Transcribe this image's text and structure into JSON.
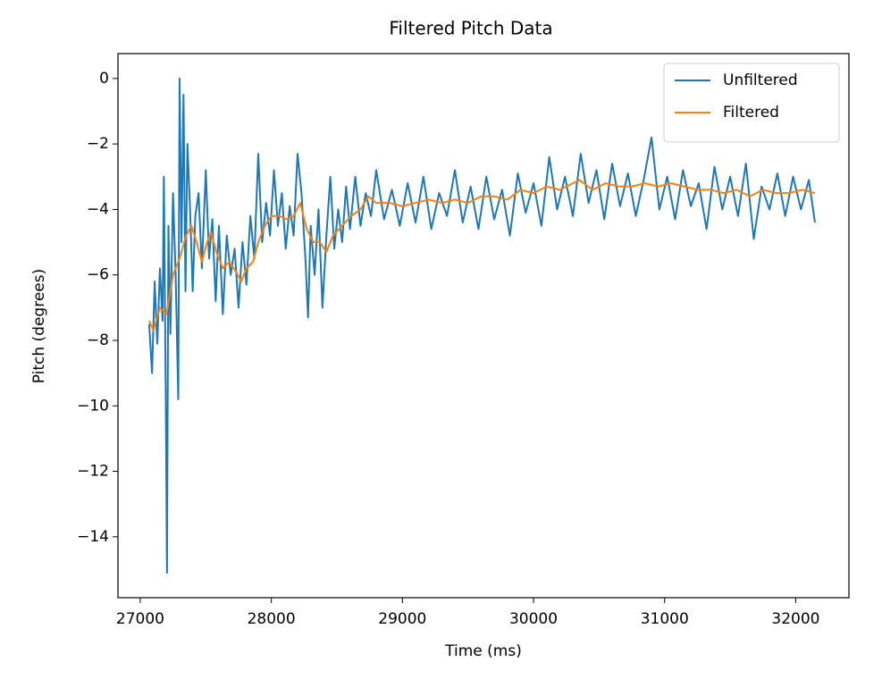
{
  "chart_data": {
    "type": "line",
    "title": "Filtered Pitch Data",
    "xlabel": "Time (ms)",
    "ylabel": "Pitch (degrees)",
    "xlim": [
      26830,
      32406
    ],
    "ylim": [
      -15.86,
      0.76
    ],
    "xticks": [
      27000,
      28000,
      29000,
      30000,
      31000,
      32000
    ],
    "yticks": [
      0,
      {
        "value": -2,
        "label": "−2"
      },
      {
        "value": -4,
        "label": "−4"
      },
      {
        "value": -6,
        "label": "−6"
      },
      {
        "value": -8,
        "label": "−8"
      },
      {
        "value": -10,
        "label": "−10"
      },
      {
        "value": -12,
        "label": "−12"
      },
      {
        "value": -14,
        "label": "−14"
      }
    ],
    "grid": false,
    "legend": "upper right",
    "series": [
      {
        "name": "Unfiltered",
        "color": "#1f77b4",
        "x": [
          27068,
          27090,
          27110,
          27130,
          27150,
          27170,
          27180,
          27195,
          27204,
          27215,
          27230,
          27250,
          27270,
          27290,
          27300,
          27315,
          27330,
          27345,
          27360,
          27380,
          27400,
          27420,
          27445,
          27470,
          27500,
          27525,
          27550,
          27575,
          27600,
          27630,
          27660,
          27690,
          27720,
          27750,
          27780,
          27810,
          27840,
          27870,
          27900,
          27930,
          27960,
          27990,
          28020,
          28050,
          28080,
          28110,
          28140,
          28170,
          28200,
          28230,
          28260,
          28280,
          28300,
          28330,
          28360,
          28390,
          28420,
          28450,
          28480,
          28510,
          28540,
          28570,
          28600,
          28640,
          28680,
          28720,
          28760,
          28800,
          28860,
          28920,
          28980,
          29040,
          29100,
          29160,
          29220,
          29280,
          29340,
          29400,
          29460,
          29520,
          29580,
          29640,
          29700,
          29760,
          29820,
          29880,
          29940,
          30000,
          30060,
          30120,
          30180,
          30240,
          30300,
          30360,
          30420,
          30480,
          30540,
          30600,
          30660,
          30720,
          30780,
          30840,
          30900,
          30960,
          31020,
          31080,
          31140,
          31200,
          31260,
          31320,
          31380,
          31440,
          31500,
          31560,
          31620,
          31680,
          31740,
          31800,
          31860,
          31920,
          31980,
          32040,
          32100,
          32147
        ],
        "values": [
          -7.5,
          -9.0,
          -6.2,
          -8.1,
          -5.8,
          -7.4,
          -3.0,
          -9.9,
          -15.1,
          -4.5,
          -7.8,
          -3.5,
          -6.0,
          -9.8,
          0.0,
          -5.0,
          -0.5,
          -6.5,
          -2.0,
          -4.0,
          -6.5,
          -4.2,
          -3.5,
          -5.8,
          -2.8,
          -5.5,
          -4.3,
          -6.8,
          -4.5,
          -7.2,
          -4.8,
          -6.0,
          -5.2,
          -7.0,
          -5.0,
          -6.3,
          -4.2,
          -5.5,
          -2.3,
          -5.0,
          -3.8,
          -4.8,
          -2.8,
          -4.5,
          -3.5,
          -5.2,
          -3.9,
          -4.8,
          -2.3,
          -3.5,
          -5.5,
          -7.3,
          -4.5,
          -6.0,
          -4.0,
          -7.0,
          -4.8,
          -3.0,
          -5.2,
          -4.0,
          -5.0,
          -3.3,
          -4.6,
          -3.0,
          -4.5,
          -3.5,
          -4.2,
          -2.8,
          -4.3,
          -3.4,
          -4.5,
          -3.2,
          -4.4,
          -3.0,
          -4.6,
          -3.5,
          -4.2,
          -2.8,
          -4.4,
          -3.3,
          -4.6,
          -3.0,
          -4.3,
          -3.4,
          -4.8,
          -2.9,
          -4.1,
          -3.2,
          -4.5,
          -2.4,
          -4.0,
          -3.0,
          -4.2,
          -2.3,
          -3.8,
          -2.8,
          -4.3,
          -2.6,
          -3.9,
          -2.9,
          -4.2,
          -3.1,
          -1.8,
          -4.0,
          -3.0,
          -4.3,
          -2.8,
          -3.9,
          -3.2,
          -4.6,
          -2.7,
          -4.0,
          -3.0,
          -4.2,
          -2.6,
          -4.9,
          -3.3,
          -4.0,
          -2.9,
          -4.2,
          -3.0,
          -4.0,
          -3.1,
          -4.4
        ]
      },
      {
        "name": "Filtered",
        "color": "#ff7f0e",
        "x": [
          27068,
          27100,
          27150,
          27200,
          27250,
          27300,
          27350,
          27390,
          27430,
          27470,
          27510,
          27540,
          27580,
          27630,
          27680,
          27730,
          27770,
          27810,
          27860,
          27900,
          27950,
          28000,
          28060,
          28120,
          28170,
          28220,
          28270,
          28320,
          28370,
          28420,
          28470,
          28540,
          28610,
          28680,
          28740,
          28800,
          28900,
          29000,
          29100,
          29200,
          29300,
          29400,
          29500,
          29600,
          29700,
          29800,
          29900,
          30000,
          30100,
          30200,
          30300,
          30350,
          30450,
          30550,
          30650,
          30750,
          30850,
          30950,
          31050,
          31150,
          31250,
          31350,
          31450,
          31550,
          31650,
          31750,
          31850,
          31950,
          32050,
          32147
        ],
        "values": [
          -7.4,
          -7.7,
          -7.0,
          -7.2,
          -6.0,
          -5.5,
          -4.8,
          -4.5,
          -5.0,
          -5.6,
          -5.0,
          -4.7,
          -5.3,
          -5.8,
          -5.6,
          -5.9,
          -6.2,
          -5.8,
          -5.6,
          -5.0,
          -4.5,
          -4.2,
          -4.2,
          -4.3,
          -4.2,
          -3.8,
          -4.6,
          -5.0,
          -5.0,
          -5.3,
          -4.8,
          -4.5,
          -4.2,
          -4.0,
          -3.6,
          -3.8,
          -3.8,
          -3.9,
          -3.8,
          -3.7,
          -3.8,
          -3.7,
          -3.8,
          -3.6,
          -3.6,
          -3.7,
          -3.4,
          -3.5,
          -3.3,
          -3.4,
          -3.2,
          -3.1,
          -3.4,
          -3.2,
          -3.3,
          -3.3,
          -3.2,
          -3.3,
          -3.2,
          -3.3,
          -3.4,
          -3.4,
          -3.5,
          -3.4,
          -3.6,
          -3.4,
          -3.5,
          -3.5,
          -3.4,
          -3.5
        ]
      }
    ]
  }
}
